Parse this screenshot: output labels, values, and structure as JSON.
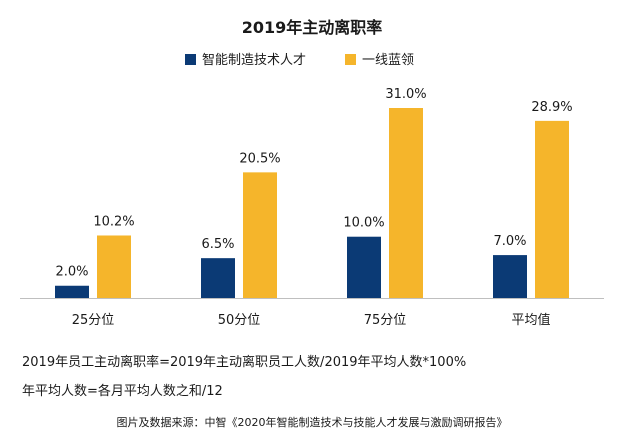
{
  "chart_data": {
    "type": "bar",
    "title": "2019年主动离职率",
    "categories": [
      "25分位",
      "50分位",
      "75分位",
      "平均值"
    ],
    "series": [
      {
        "name": "智能制造技术人才",
        "color": "#0b3a75",
        "values": [
          2.0,
          6.5,
          10.0,
          7.0
        ],
        "labels": [
          "2.0%",
          "6.5%",
          "10.0%",
          "7.0%"
        ]
      },
      {
        "name": "一线蓝领",
        "color": "#f5b52b",
        "values": [
          10.2,
          20.5,
          31.0,
          28.9
        ],
        "labels": [
          "10.2%",
          "20.5%",
          "31.0%",
          "28.9%"
        ]
      }
    ],
    "xlabel": "",
    "ylabel": "",
    "ylim": [
      0,
      31
    ],
    "grid": false,
    "legend": "top-center"
  },
  "notes": {
    "formula": "2019年员工主动离职率=2019年主动离职员工人数/2019年平均人数*100%",
    "average": "年平均人数=各月平均人数之和/12"
  },
  "source": "图片及数据来源：中智《2020年智能制造技术与技能人才发展与激励调研报告》"
}
